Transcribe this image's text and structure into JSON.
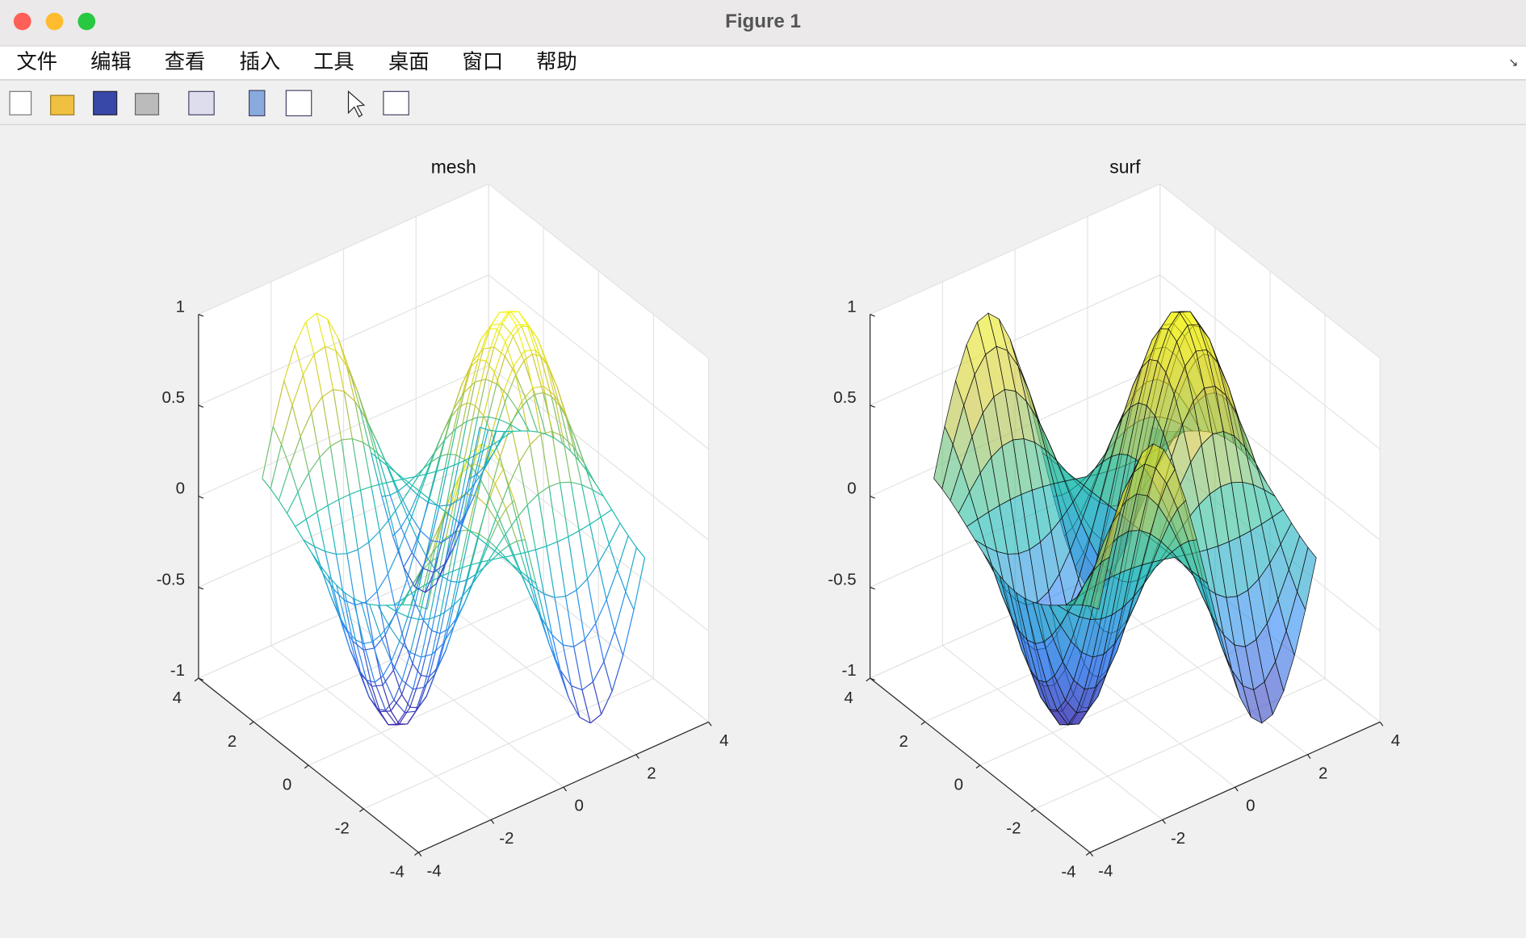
{
  "window": {
    "title": "Figure 1"
  },
  "menu": [
    "文件",
    "编辑",
    "查看",
    "插入",
    "工具",
    "桌面",
    "窗口",
    "帮助"
  ],
  "axes": [
    {
      "type": "mesh",
      "title": "mesh",
      "xlim": [
        -4,
        4
      ],
      "ylim": [
        -4,
        4
      ],
      "zlim": [
        -1,
        1
      ],
      "xticks": [
        -4,
        -2,
        0,
        2,
        4
      ],
      "yticks": [
        -4,
        -2,
        0,
        2,
        4
      ],
      "zticks": [
        -1,
        -0.5,
        0,
        0.5,
        1
      ]
    },
    {
      "type": "surf",
      "title": "surf",
      "xlim": [
        -4,
        4
      ],
      "ylim": [
        -4,
        4
      ],
      "zlim": [
        -1,
        1
      ],
      "xticks": [
        -4,
        -2,
        0,
        2,
        4
      ],
      "yticks": [
        -4,
        -2,
        0,
        2,
        4
      ],
      "zticks": [
        -1,
        -0.5,
        0,
        0.5,
        1
      ]
    }
  ]
}
